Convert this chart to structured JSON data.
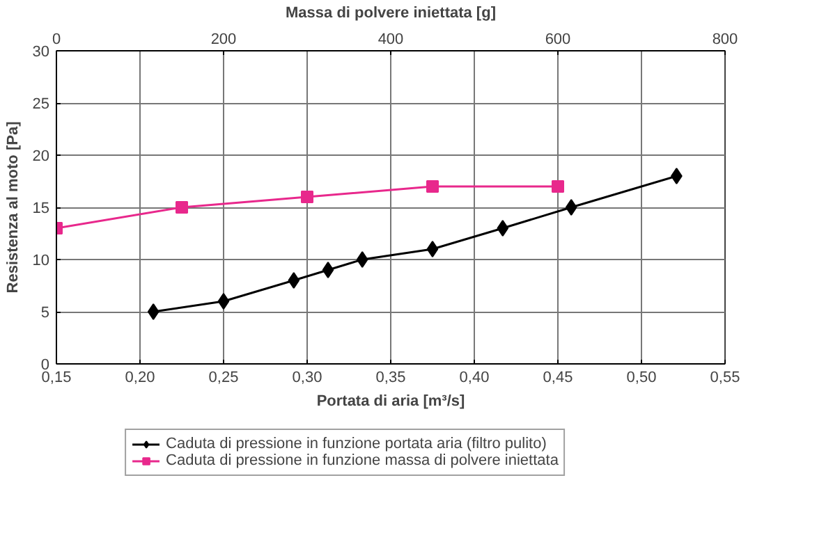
{
  "chart_data": {
    "type": "line",
    "xlabel": "Portata di aria [m³/s]",
    "x2label": "Massa di polvere iniettata [g]",
    "ylabel": "Resistenza al moto [Pa]",
    "xlim": [
      0.15,
      0.55
    ],
    "xticks": [
      {
        "value": 0.15,
        "label": "0,15"
      },
      {
        "value": 0.2,
        "label": "0,20"
      },
      {
        "value": 0.25,
        "label": "0,25"
      },
      {
        "value": 0.3,
        "label": "0,30"
      },
      {
        "value": 0.35,
        "label": "0,35"
      },
      {
        "value": 0.4,
        "label": "0,40"
      },
      {
        "value": 0.45,
        "label": "0,45"
      },
      {
        "value": 0.5,
        "label": "0,50"
      },
      {
        "value": 0.55,
        "label": "0,55"
      }
    ],
    "x2lim": [
      0,
      800
    ],
    "x2ticks": [
      0,
      200,
      400,
      600,
      800
    ],
    "ylim": [
      0,
      30
    ],
    "yticks": [
      0,
      5,
      10,
      15,
      20,
      25,
      30
    ],
    "grid": true,
    "legend": "bottom",
    "line_style": "solid",
    "series": [
      {
        "name": "Caduta di pressione in funzione portata aria (filtro pulito)",
        "color": "#000000",
        "marker": "diamond",
        "x": [
          0.208,
          0.25,
          0.292,
          0.3125,
          0.333,
          0.375,
          0.417,
          0.458,
          0.521
        ],
        "values": [
          5,
          6,
          8,
          9,
          10,
          11,
          13,
          15,
          18
        ]
      },
      {
        "name": "Caduta di pressione in funzione massa di polvere iniettata",
        "color": "#e8288c",
        "marker": "square",
        "axis": "x2",
        "x": [
          0,
          150,
          300,
          450,
          600
        ],
        "values": [
          13,
          15,
          16,
          17,
          17
        ]
      }
    ]
  }
}
